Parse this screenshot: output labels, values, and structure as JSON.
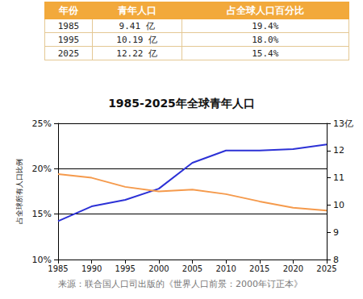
{
  "table": {
    "header": [
      "年份",
      "青年人口",
      "占全球人口百分比"
    ],
    "rows": [
      [
        "1985",
        "9.41 亿",
        "19.4%"
      ],
      [
        "1995",
        "10.19 亿",
        "18.0%"
      ],
      [
        "2025",
        "12.22 亿",
        "15.4%"
      ]
    ]
  },
  "chart_data": {
    "type": "line",
    "title": "1985-2025年全球青年人口",
    "y_label": "占全球所有人口比例",
    "x": [
      1985,
      1990,
      1995,
      2000,
      2005,
      2010,
      2015,
      2020,
      2025
    ],
    "series": [
      {
        "name": "青年人口",
        "color": "#2c31d6",
        "axis": "y2",
        "values": [
          9.41,
          9.95,
          10.19,
          10.6,
          11.55,
          12.0,
          12.0,
          12.05,
          12.22
        ]
      },
      {
        "name": "占全球人口百分比",
        "color": "#f59a4c",
        "values": [
          19.4,
          19.0,
          18.0,
          17.5,
          17.7,
          17.2,
          16.4,
          15.7,
          15.4
        ]
      }
    ],
    "xlim": [
      1985,
      2025
    ],
    "xticks": [
      1985,
      1990,
      1995,
      2000,
      2005,
      2010,
      2015,
      2020,
      2025
    ],
    "ylim": [
      10,
      25
    ],
    "yticks": [
      {
        "value": 10,
        "label": "10%"
      },
      {
        "value": 15,
        "label": "15%"
      },
      {
        "value": 20,
        "label": "20%"
      },
      {
        "value": 25,
        "label": "25%"
      }
    ],
    "y2lim": [
      8,
      13
    ],
    "y2ticks": [
      8,
      9,
      10,
      11,
      12,
      {
        "value": 13,
        "label": "13亿"
      }
    ],
    "grid": true
  },
  "source": "来源：联合国人口司出版的《世界人口前景：2000年订正本》"
}
